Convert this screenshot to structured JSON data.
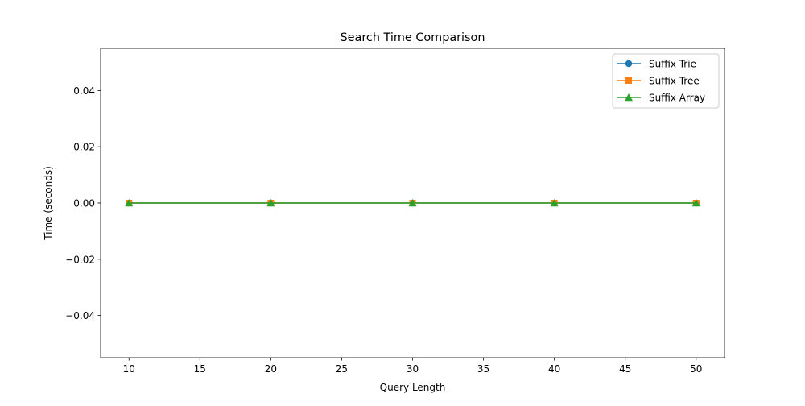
{
  "chart_data": {
    "type": "line",
    "title": "Search Time Comparison",
    "xlabel": "Query Length",
    "ylabel": "Time (seconds)",
    "x": [
      10,
      20,
      30,
      40,
      50
    ],
    "xlim": [
      8,
      52
    ],
    "ylim": [
      -0.055,
      0.055
    ],
    "xticks": [
      10,
      15,
      20,
      25,
      30,
      35,
      40,
      45,
      50
    ],
    "yticks": [
      -0.04,
      -0.02,
      0.0,
      0.02,
      0.04
    ],
    "ytick_labels": [
      "−0.04",
      "−0.02",
      "0.00",
      "0.02",
      "0.04"
    ],
    "grid": false,
    "legend_position": "top-right",
    "series": [
      {
        "name": "Suffix Trie",
        "values": [
          0,
          0,
          0,
          0,
          0
        ],
        "color": "#1f77b4",
        "marker": "circle"
      },
      {
        "name": "Suffix Tree",
        "values": [
          0,
          0,
          0,
          0,
          0
        ],
        "color": "#ff7f0e",
        "marker": "square"
      },
      {
        "name": "Suffix Array",
        "values": [
          0,
          0,
          0,
          0,
          0
        ],
        "color": "#2ca02c",
        "marker": "triangle"
      }
    ]
  }
}
